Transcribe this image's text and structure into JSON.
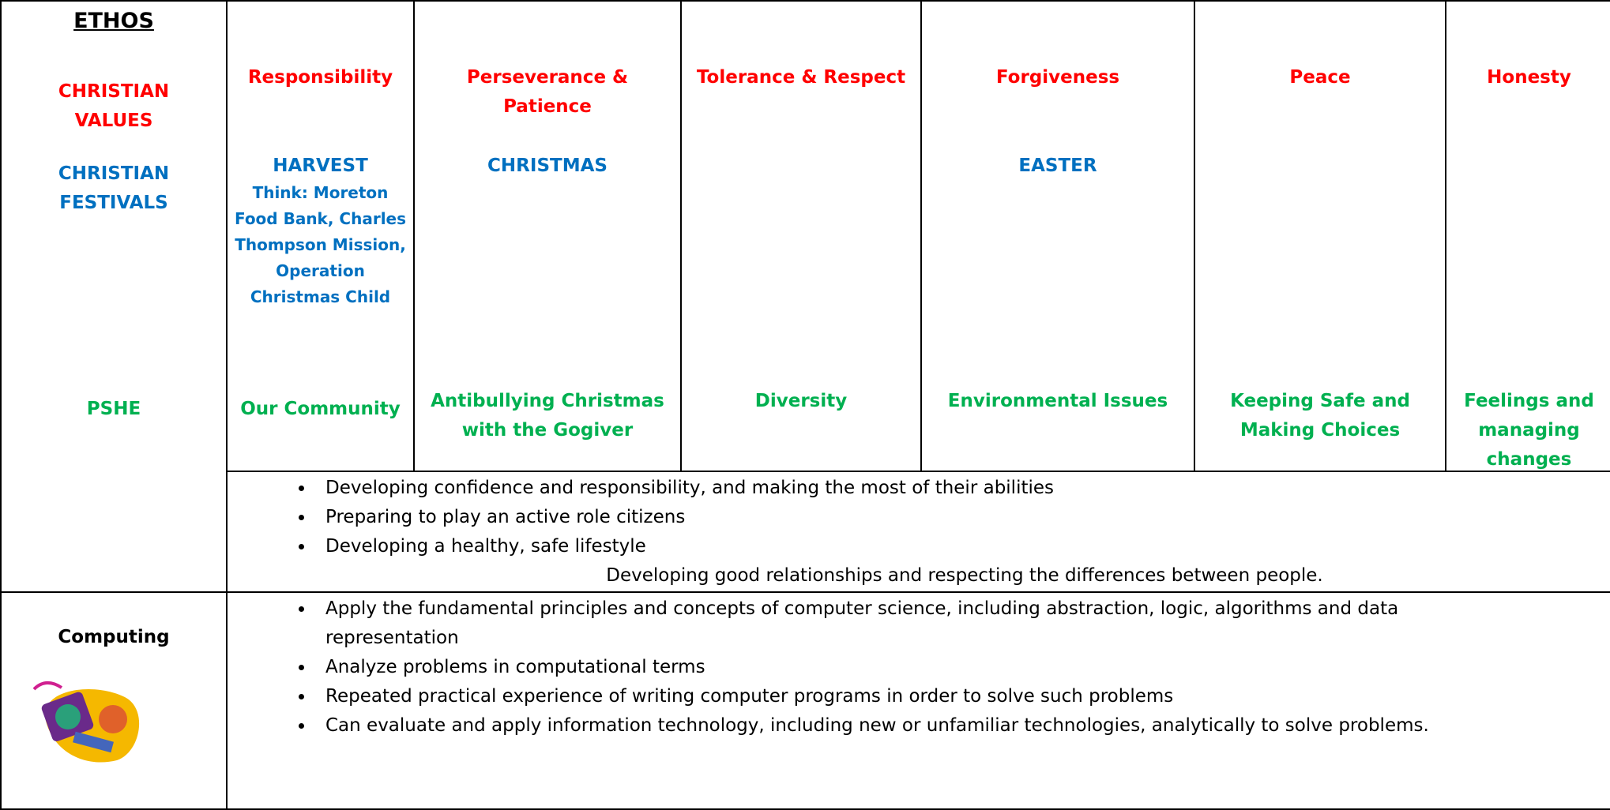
{
  "ethos": {
    "title": "ETHOS",
    "values_label": "CHRISTIAN VALUES",
    "festivals_label": "CHRISTIAN FESTIVALS",
    "pshe_label": "PSHE"
  },
  "columns": [
    {
      "value": "Responsibility",
      "festival": "HARVEST",
      "festival_note": "Think: Moreton Food Bank, Charles Thompson Mission, Operation Christmas Child",
      "pshe": "Our Community"
    },
    {
      "value": "Perseverance & Patience",
      "festival": "CHRISTMAS",
      "pshe": "Antibullying Christmas with the Gogiver"
    },
    {
      "value": "Tolerance & Respect",
      "pshe": "Diversity"
    },
    {
      "value": "Forgiveness",
      "festival": "EASTER",
      "pshe": "Environmental Issues"
    },
    {
      "value": "Peace",
      "pshe": "Keeping Safe and Making Choices"
    },
    {
      "value": "Honesty",
      "pshe": "Feelings and managing changes"
    }
  ],
  "pshe_aims": {
    "bullets": [
      "Developing confidence and responsibility, and making the most of their abilities",
      "Preparing to play an active role citizens",
      "Developing a healthy, safe lifestyle"
    ],
    "closing": "Developing good relationships and respecting the differences between people."
  },
  "computing": {
    "title": "Computing",
    "bullets": [
      "Apply the fundamental principles and concepts of computer science, including abstraction, logic, algorithms and data representation",
      "Analyze problems in computational terms",
      "Repeated practical experience of writing computer programs in order to solve such problems",
      "Can evaluate and apply information technology, including new or unfamiliar technologies, analytically to solve problems."
    ]
  }
}
